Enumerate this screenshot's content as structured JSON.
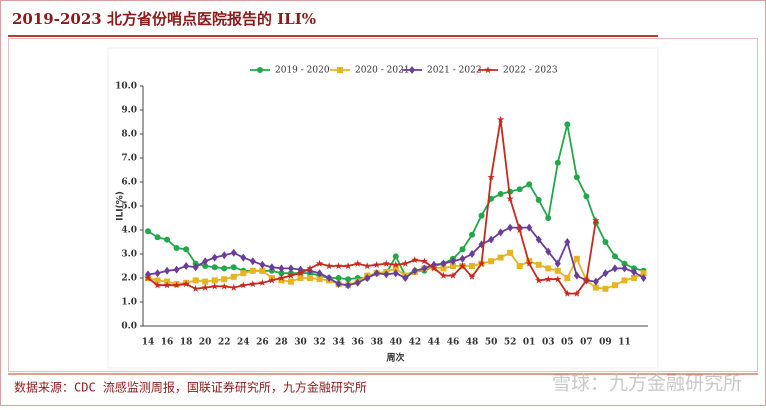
{
  "header": {
    "title": "2019-2023 北方省份哨点医院报告的 ILI%"
  },
  "chart_data": {
    "type": "line",
    "categories": [
      "14",
      null,
      "16",
      null,
      "18",
      null,
      "20",
      null,
      "22",
      null,
      "24",
      null,
      "26",
      null,
      "28",
      null,
      "30",
      null,
      "32",
      null,
      "34",
      null,
      "36",
      null,
      "38",
      null,
      "40",
      null,
      "42",
      null,
      "44",
      null,
      "46",
      null,
      "48",
      null,
      "50",
      null,
      "52",
      null,
      "01",
      null,
      "03",
      null,
      "05",
      null,
      "07",
      null,
      "09",
      null,
      "11",
      null,
      null
    ],
    "series": [
      {
        "name": "2019 - 2020",
        "color": "#22a84a",
        "marker": "circle",
        "values": [
          3.95,
          3.7,
          3.6,
          3.25,
          3.2,
          2.6,
          2.5,
          2.45,
          2.4,
          2.45,
          2.3,
          2.3,
          2.3,
          2.3,
          2.2,
          2.2,
          2.2,
          2.2,
          2.1,
          2.0,
          2.0,
          1.95,
          2.0,
          2.0,
          2.2,
          2.2,
          2.9,
          2.1,
          2.3,
          2.3,
          2.5,
          2.6,
          2.8,
          3.2,
          3.8,
          4.6,
          5.3,
          5.5,
          5.6,
          5.7,
          5.9,
          5.25,
          4.5,
          6.8,
          8.4,
          6.2,
          5.4,
          4.3,
          3.5,
          2.9,
          2.6,
          2.4,
          2.3
        ]
      },
      {
        "name": "2020 - 2021",
        "color": "#e6b422",
        "marker": "square",
        "values": [
          2.0,
          1.9,
          1.85,
          1.75,
          1.8,
          1.9,
          1.85,
          1.9,
          1.95,
          2.05,
          2.2,
          2.3,
          2.3,
          2.0,
          1.9,
          1.85,
          2.0,
          2.0,
          1.95,
          1.9,
          1.75,
          1.7,
          1.85,
          2.1,
          2.2,
          2.25,
          2.4,
          2.1,
          2.25,
          2.4,
          2.45,
          2.4,
          2.5,
          2.5,
          2.5,
          2.6,
          2.7,
          2.85,
          3.05,
          2.5,
          2.7,
          2.55,
          2.4,
          2.3,
          2.0,
          2.8,
          1.9,
          1.6,
          1.55,
          1.7,
          1.9,
          2.0,
          2.2
        ]
      },
      {
        "name": "2021 - 2022",
        "color": "#6a3d9a",
        "marker": "diamond",
        "values": [
          2.15,
          2.2,
          2.3,
          2.35,
          2.5,
          2.45,
          2.7,
          2.85,
          2.95,
          3.05,
          2.85,
          2.7,
          2.55,
          2.45,
          2.4,
          2.4,
          2.35,
          2.3,
          2.2,
          2.0,
          1.75,
          1.7,
          1.8,
          2.0,
          2.2,
          2.15,
          2.2,
          2.0,
          2.3,
          2.4,
          2.55,
          2.6,
          2.7,
          2.8,
          3.0,
          3.4,
          3.6,
          3.9,
          4.1,
          4.1,
          4.1,
          3.6,
          3.1,
          2.6,
          3.5,
          2.1,
          1.9,
          1.85,
          2.2,
          2.4,
          2.4,
          2.25,
          2.0
        ]
      },
      {
        "name": "2022 - 2023",
        "color": "#c8281e",
        "marker": "star",
        "values": [
          2.0,
          1.7,
          1.7,
          1.7,
          1.75,
          1.55,
          1.6,
          1.65,
          1.65,
          1.6,
          1.7,
          1.75,
          1.8,
          1.9,
          2.0,
          2.1,
          2.2,
          2.4,
          2.6,
          2.5,
          2.5,
          2.5,
          2.6,
          2.5,
          2.55,
          2.6,
          2.55,
          2.6,
          2.75,
          2.7,
          2.4,
          2.1,
          2.1,
          2.5,
          2.05,
          2.6,
          6.2,
          8.6,
          5.3,
          4.0,
          2.6,
          1.9,
          1.95,
          1.95,
          1.35,
          1.35,
          1.9,
          4.4,
          null,
          null,
          null,
          null,
          null
        ]
      }
    ],
    "ylabel": "ILI(%)",
    "xlabel": "周次",
    "ylim": [
      0,
      10
    ],
    "yticks": [
      {
        "value": 0,
        "label": "0.0"
      },
      {
        "value": 1,
        "label": "1.0"
      },
      {
        "value": 2,
        "label": "2.0"
      },
      {
        "value": 3,
        "label": "3.0"
      },
      {
        "value": 4,
        "label": "4.0"
      },
      {
        "value": 5,
        "label": "5.0"
      },
      {
        "value": 6,
        "label": "6.0"
      },
      {
        "value": 7,
        "label": "7.0"
      },
      {
        "value": 8,
        "label": "8.0"
      },
      {
        "value": 9,
        "label": "9.0"
      },
      {
        "value": 10,
        "label": "10.0"
      }
    ],
    "legend": "top"
  },
  "footer": {
    "source": "数据来源：CDC 流感监测周报，国联证券研究所，九方金融研究所",
    "watermark": "雪球：九方金融研究所"
  }
}
